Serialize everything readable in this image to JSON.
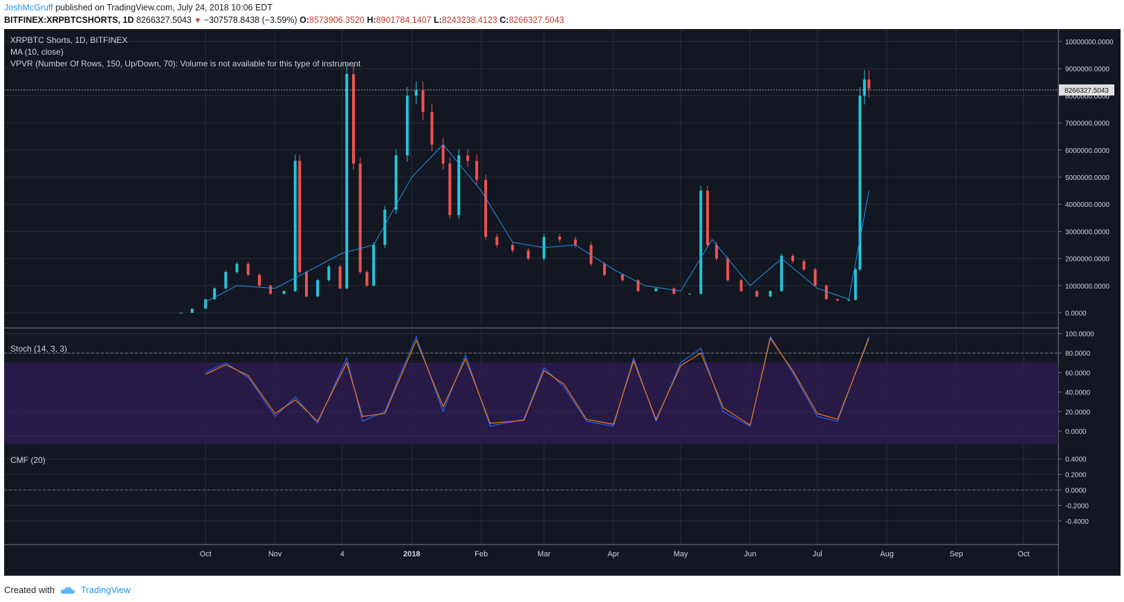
{
  "header": {
    "user": "JoshMcGruff",
    "published": " published on TradingView.com, July 24, 2018 10:06 EDT",
    "symbol": "BITFINEX:XRPBTCSHORTS, 1D",
    "last": "8266327.5043",
    "change": "−307578.8438 (−3.59%)",
    "o_label": "O:",
    "o": "8573906.3520",
    "h_label": "H:",
    "h": "8901784.1407",
    "l_label": "L:",
    "l": "8243238.4123",
    "c_label": "C:",
    "c": "8266327.5043"
  },
  "legend": {
    "title": "XRPBTC Shorts, 1D, BITFINEX",
    "ma": "MA (10, close)",
    "vpvr": "VPVR (Number Of Rows, 150, Up/Down, 70): Volume is not available for this type of instrument",
    "stoch": "Stoch (14, 3, 3)",
    "cmf": "CMF (20)"
  },
  "price_label": "8266327.5043",
  "footer": {
    "created": "Created with",
    "brand": "TradingView"
  },
  "colors": {
    "background": "#131722",
    "grid": "#2a2e39",
    "up": "#26c6da",
    "down": "#ef5350",
    "ma": "#2196f3",
    "stoch_k": "#2962ff",
    "stoch_d": "#f57c00",
    "stoch_band": "#2d1b4e"
  },
  "chart_data": [
    {
      "type": "candlestick",
      "title": "XRPBTC Shorts, 1D, BITFINEX",
      "x_ticks": [
        "Oct",
        "Nov",
        "4",
        "2018",
        "Feb",
        "Mar",
        "Apr",
        "May",
        "Jun",
        "Jul",
        "Aug",
        "Sep",
        "Oct"
      ],
      "y_ticks": [
        "10000000.0000",
        "9000000.0000",
        "8000000.0000",
        "7000000.0000",
        "6000000.0000",
        "5000000.0000",
        "4000000.0000",
        "3000000.0000",
        "2000000.0000",
        "1000000.0000",
        "0.0000"
      ],
      "ylim": [
        0,
        10000000
      ],
      "series": [
        {
          "name": "XRPBTC Shorts (approx close)",
          "x": [
            "2017-09-20",
            "2017-09-25",
            "2017-10-01",
            "2017-10-05",
            "2017-10-10",
            "2017-10-15",
            "2017-10-20",
            "2017-10-25",
            "2017-10-30",
            "2017-11-05",
            "2017-11-10",
            "2017-11-12",
            "2017-11-15",
            "2017-11-20",
            "2017-11-25",
            "2017-11-30",
            "2017-12-03",
            "2017-12-06",
            "2017-12-09",
            "2017-12-12",
            "2017-12-15",
            "2017-12-20",
            "2017-12-25",
            "2017-12-30",
            "2018-01-03",
            "2018-01-06",
            "2018-01-10",
            "2018-01-15",
            "2018-01-18",
            "2018-01-22",
            "2018-01-26",
            "2018-01-30",
            "2018-02-03",
            "2018-02-08",
            "2018-02-15",
            "2018-02-22",
            "2018-03-01",
            "2018-03-08",
            "2018-03-15",
            "2018-03-22",
            "2018-03-28",
            "2018-04-05",
            "2018-04-12",
            "2018-04-20",
            "2018-04-28",
            "2018-05-05",
            "2018-05-10",
            "2018-05-13",
            "2018-05-17",
            "2018-05-22",
            "2018-05-28",
            "2018-06-04",
            "2018-06-10",
            "2018-06-15",
            "2018-06-20",
            "2018-06-25",
            "2018-06-30",
            "2018-07-05",
            "2018-07-10",
            "2018-07-15",
            "2018-07-18",
            "2018-07-20",
            "2018-07-22",
            "2018-07-24"
          ],
          "values": [
            0,
            150000,
            500000,
            900000,
            1500000,
            1800000,
            1400000,
            1000000,
            700000,
            800000,
            5600000,
            1500000,
            600000,
            1200000,
            1700000,
            900000,
            8800000,
            5500000,
            1500000,
            1000000,
            2500000,
            3800000,
            5800000,
            8000000,
            8200000,
            7400000,
            6200000,
            5500000,
            3600000,
            5800000,
            5600000,
            4900000,
            2800000,
            2500000,
            2300000,
            2000000,
            2800000,
            2700000,
            2500000,
            1800000,
            1400000,
            1200000,
            800000,
            900000,
            700000,
            700000,
            4500000,
            2500000,
            2000000,
            1200000,
            800000,
            600000,
            800000,
            2100000,
            1900000,
            1600000,
            1000000,
            500000,
            450000,
            480000,
            1600000,
            8000000,
            8600000,
            8266327
          ]
        },
        {
          "name": "MA (10, close)",
          "x": [
            "2017-10-01",
            "2017-10-15",
            "2017-11-01",
            "2017-11-15",
            "2017-12-01",
            "2017-12-15",
            "2018-01-01",
            "2018-01-15",
            "2018-02-01",
            "2018-02-15",
            "2018-03-01",
            "2018-03-15",
            "2018-04-01",
            "2018-04-15",
            "2018-05-01",
            "2018-05-15",
            "2018-06-01",
            "2018-06-15",
            "2018-07-01",
            "2018-07-15",
            "2018-07-24"
          ],
          "values": [
            400000,
            1000000,
            900000,
            1500000,
            2200000,
            2500000,
            5000000,
            6200000,
            4500000,
            2600000,
            2400000,
            2500000,
            1600000,
            1000000,
            800000,
            2700000,
            1000000,
            2000000,
            900000,
            500000,
            4500000
          ]
        }
      ]
    },
    {
      "type": "line",
      "title": "Stoch (14, 3, 3)",
      "y_ticks": [
        "100.0000",
        "80.0000",
        "60.0000",
        "40.0000",
        "20.0000",
        "0.0000"
      ],
      "ylim": [
        0,
        100
      ],
      "bands": [
        20,
        80
      ],
      "series": [
        {
          "name": "%K",
          "x": [
            "2017-10-01",
            "2017-10-10",
            "2017-10-20",
            "2017-11-01",
            "2017-11-10",
            "2017-11-20",
            "2017-12-03",
            "2017-12-10",
            "2017-12-20",
            "2018-01-03",
            "2018-01-15",
            "2018-01-25",
            "2018-02-05",
            "2018-02-20",
            "2018-03-01",
            "2018-03-10",
            "2018-03-20",
            "2018-04-01",
            "2018-04-10",
            "2018-04-20",
            "2018-05-01",
            "2018-05-10",
            "2018-05-20",
            "2018-06-01",
            "2018-06-10",
            "2018-06-20",
            "2018-07-01",
            "2018-07-10",
            "2018-07-24"
          ],
          "values": [
            60,
            70,
            55,
            15,
            35,
            8,
            75,
            10,
            20,
            97,
            20,
            78,
            5,
            12,
            65,
            45,
            10,
            5,
            75,
            10,
            70,
            85,
            20,
            5,
            97,
            60,
            15,
            10,
            97
          ]
        },
        {
          "name": "%D",
          "x": [
            "2017-10-01",
            "2017-10-10",
            "2017-10-20",
            "2017-11-01",
            "2017-11-10",
            "2017-11-20",
            "2017-12-03",
            "2017-12-10",
            "2017-12-20",
            "2018-01-03",
            "2018-01-15",
            "2018-01-25",
            "2018-02-05",
            "2018-02-20",
            "2018-03-01",
            "2018-03-10",
            "2018-03-20",
            "2018-04-01",
            "2018-04-10",
            "2018-04-20",
            "2018-05-01",
            "2018-05-10",
            "2018-05-20",
            "2018-06-01",
            "2018-06-10",
            "2018-06-20",
            "2018-07-01",
            "2018-07-10",
            "2018-07-24"
          ],
          "values": [
            58,
            68,
            57,
            18,
            32,
            10,
            70,
            15,
            18,
            93,
            25,
            74,
            8,
            11,
            62,
            48,
            12,
            7,
            72,
            12,
            67,
            80,
            24,
            6,
            95,
            62,
            18,
            12,
            95
          ]
        }
      ]
    },
    {
      "type": "line",
      "title": "CMF (20)",
      "y_ticks": [
        "0.4000",
        "0.2000",
        "0.0000",
        "-0.2000",
        "-0.4000"
      ],
      "ylim": [
        -0.5,
        0.5
      ],
      "series": []
    }
  ]
}
